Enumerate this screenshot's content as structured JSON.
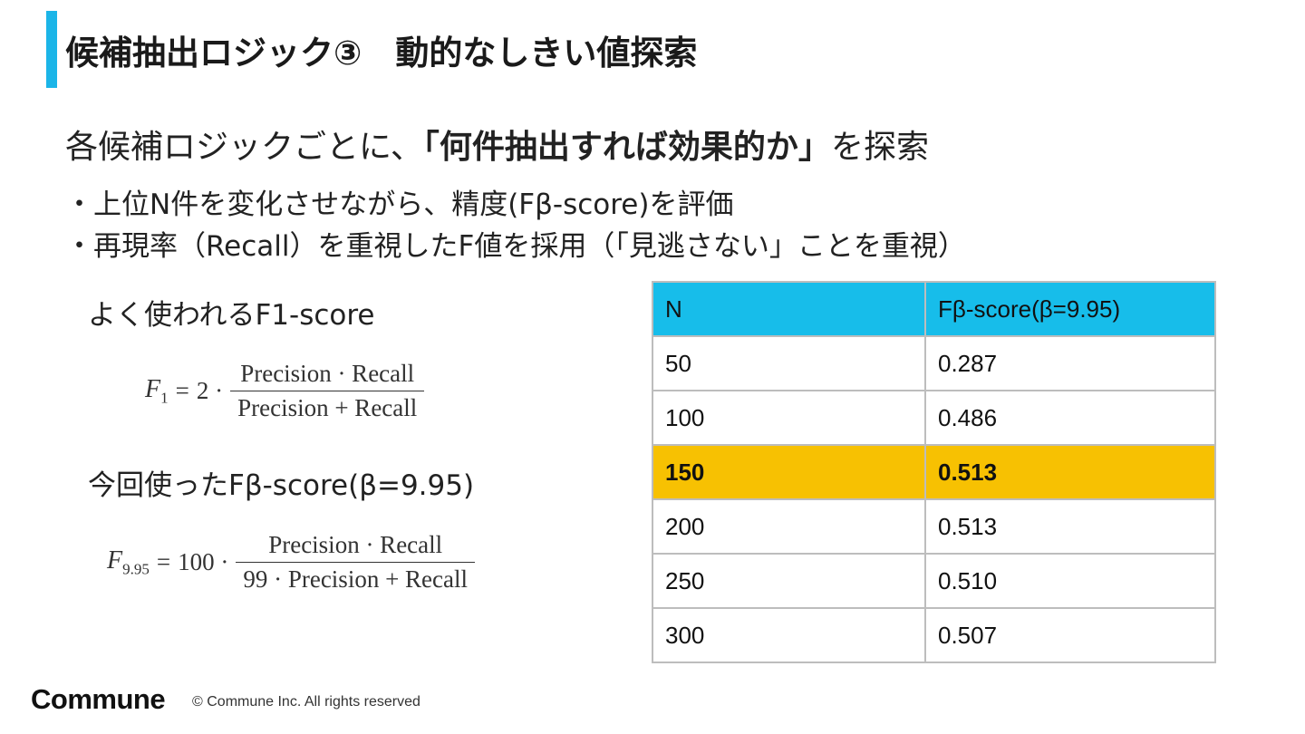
{
  "title": "候補抽出ロジック③　動的なしきい値探索",
  "lead": {
    "prefix": "各候補ロジックごとに、",
    "emphasis": "「何件抽出すれば効果的か」",
    "suffix": "を探索"
  },
  "bullets": [
    "上位N件を変化させながら、精度(Fβ-score)を評価",
    "再現率（Recall）を重視したF値を採用（「見逃さない」ことを重視）"
  ],
  "f1": {
    "label": "よく使われるF1-score",
    "lhs": "F",
    "lhs_sub": "1",
    "eq": "=",
    "coef": "2 ·",
    "numerator": "Precision · Recall",
    "denominator": "Precision + Recall"
  },
  "fbeta": {
    "label": "今回使ったFβ-score(β=9.95)",
    "lhs": "F",
    "lhs_sub": "9.95",
    "eq": "=",
    "coef": "100 ·",
    "numerator": "Precision · Recall",
    "denominator": "99 · Precision + Recall"
  },
  "table": {
    "headers": [
      "N",
      "Fβ-score(β=9.95)"
    ],
    "rows": [
      [
        "50",
        "0.287"
      ],
      [
        "100",
        "0.486"
      ],
      [
        "150",
        "0.513"
      ],
      [
        "200",
        "0.513"
      ],
      [
        "250",
        "0.510"
      ],
      [
        "300",
        "0.507"
      ]
    ],
    "highlight_row": 2,
    "header_color": "#17bdea",
    "highlight_color": "#f7c102"
  },
  "footer": {
    "logo": "Commune",
    "copyright": "© Commune Inc. All rights reserved"
  },
  "colors": {
    "accent": "#1bb5e8"
  }
}
